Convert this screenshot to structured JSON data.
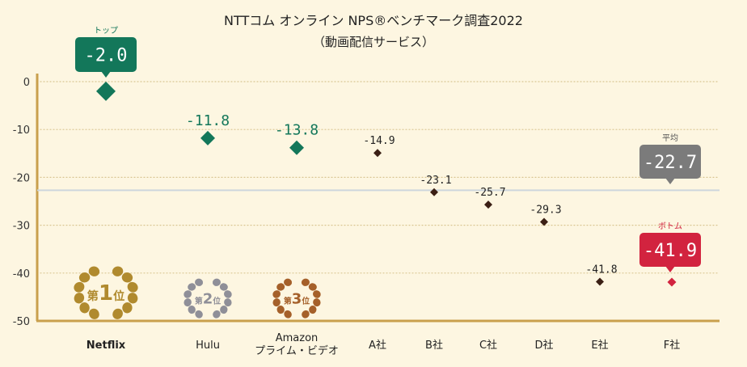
{
  "chart_data": {
    "type": "scatter",
    "title": "NTTコム オンライン NPS®ベンチマーク調査2022",
    "subtitle": "（動画配信サービス）",
    "categories": [
      "Netflix",
      "Hulu",
      "Amazon\nプライム・ビデオ",
      "A社",
      "B社",
      "C社",
      "D社",
      "E社",
      "F社"
    ],
    "values": [
      -2.0,
      -11.8,
      -13.8,
      -14.9,
      -23.1,
      -25.7,
      -29.3,
      -41.8,
      -41.9
    ],
    "value_labels": [
      "-2.0",
      "-11.8",
      "-13.8",
      "-14.9",
      "-23.1",
      "-25.7",
      "-29.3",
      "-41.8",
      "-41.9"
    ],
    "ylim": [
      -50,
      0
    ],
    "yticks": [
      "0",
      "-10",
      "-20",
      "-30",
      "-40",
      "-50"
    ],
    "average": {
      "label": "平均",
      "value": -22.7,
      "text": "-22.7"
    },
    "top_callout": {
      "label": "トップ",
      "text": "-2.0"
    },
    "bottom_callout": {
      "label": "ボトム",
      "text": "-41.9"
    },
    "awards": [
      {
        "rank": "第1位",
        "prefix": "第",
        "num": "1",
        "suffix": "位"
      },
      {
        "rank": "第2位",
        "prefix": "第",
        "num": "2",
        "suffix": "位"
      },
      {
        "rank": "第3位",
        "prefix": "第",
        "num": "3",
        "suffix": "位"
      }
    ],
    "colors": {
      "top3": "#13775a",
      "default": "#3b1f14",
      "bottom": "#d2233f",
      "average": "#7b7b7b",
      "avg_line": "#cdd6dc",
      "axis": "#c9a04d",
      "gold": "#b08a2e",
      "silver": "#8f8f98",
      "bronze": "#a5602a",
      "background": "#fdf6e1"
    }
  }
}
